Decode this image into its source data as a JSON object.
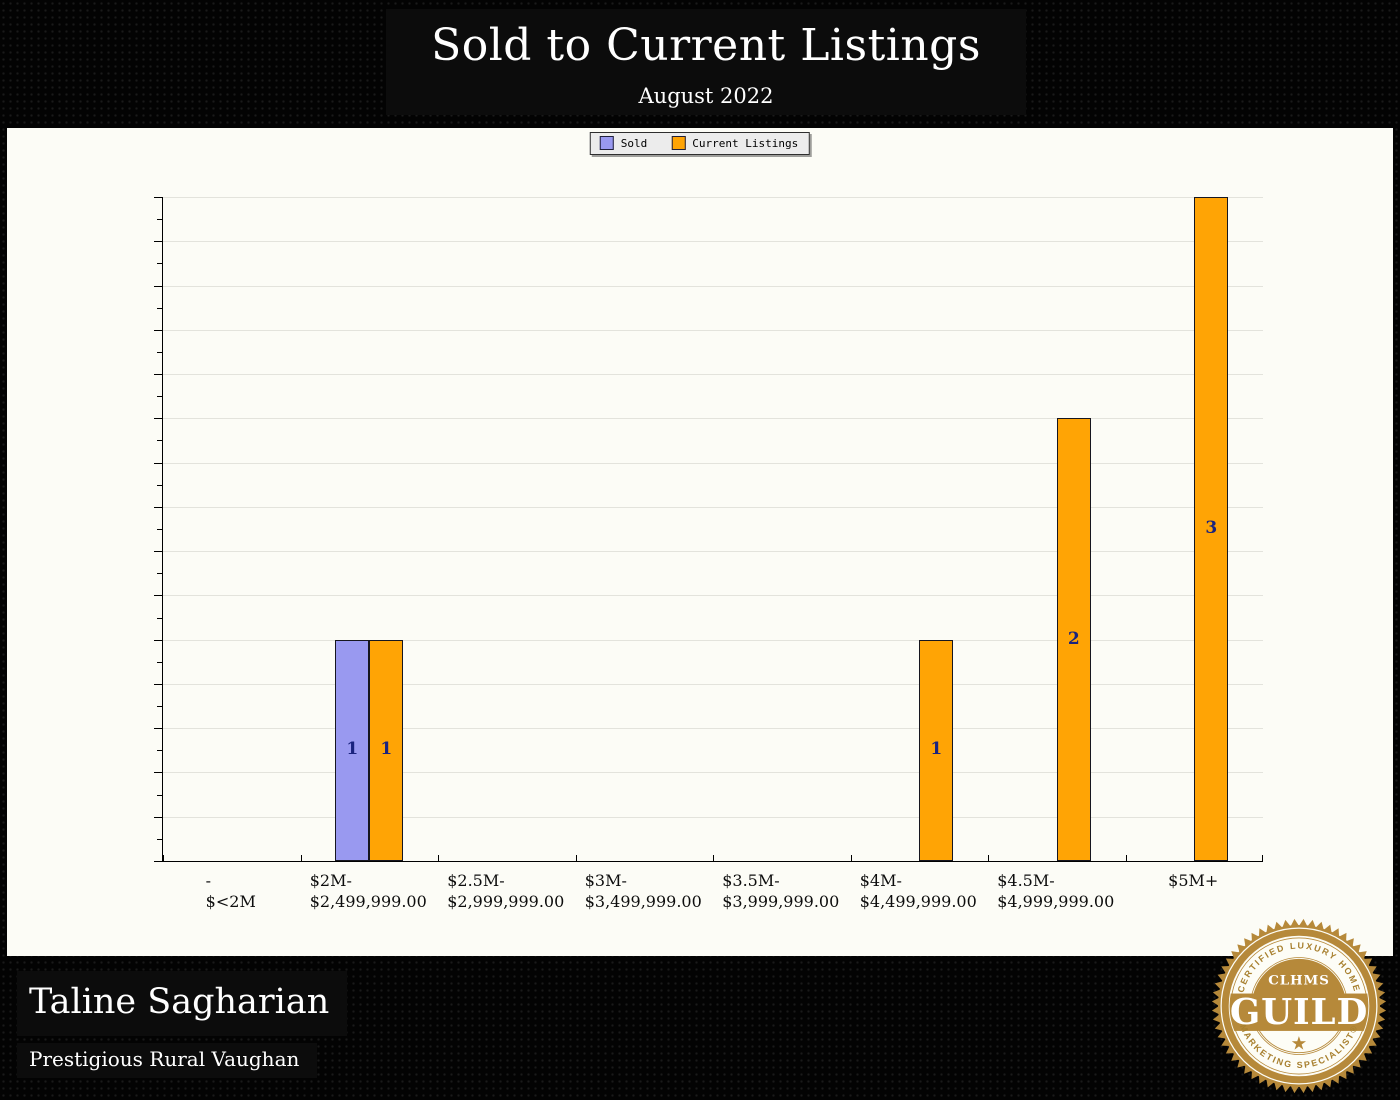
{
  "header": {
    "title": "Sold to Current Listings",
    "subtitle": "August 2022"
  },
  "legend": {
    "items": [
      {
        "label": "Sold",
        "color": "#9999f0"
      },
      {
        "label": "Current Listings",
        "color": "#ffa405"
      }
    ]
  },
  "chart_data": {
    "type": "bar",
    "title": "Sold to Current Listings",
    "subtitle": "August 2022",
    "categories": [
      [
        "-",
        "$<2M"
      ],
      [
        "$2M-",
        "$2,499,999.00"
      ],
      [
        "$2.5M-",
        "$2,999,999.00"
      ],
      [
        "$3M-",
        "$3,499,999.00"
      ],
      [
        "$3.5M-",
        "$3,999,999.00"
      ],
      [
        "$4M-",
        "$4,499,999.00"
      ],
      [
        "$4.5M-",
        "$4,999,999.00"
      ],
      [
        "$5M+",
        ""
      ]
    ],
    "series": [
      {
        "name": "Sold",
        "color": "#9999f0",
        "values": [
          0,
          1,
          0,
          0,
          0,
          0,
          0,
          0
        ]
      },
      {
        "name": "Current Listings",
        "color": "#ffa405",
        "values": [
          0,
          1,
          0,
          0,
          0,
          1,
          2,
          3
        ]
      }
    ],
    "ylim": [
      0,
      3
    ],
    "y_tick_step": 0.2,
    "y_minor_step": 0.1,
    "grid": "horizontal",
    "legend_position": "top-center",
    "value_label_color": "#1a237e"
  },
  "footer": {
    "agent_name": "Taline Sagharian",
    "tagline": "Prestigious Rural Vaughan"
  },
  "badge": {
    "top_arc": "CERTIFIED LUXURY HOME",
    "org": "CLHMS",
    "name": "GUILD",
    "bottom_arc": "MARKETING SPECIALIST®",
    "star": "★",
    "gold": "#b6893a"
  }
}
